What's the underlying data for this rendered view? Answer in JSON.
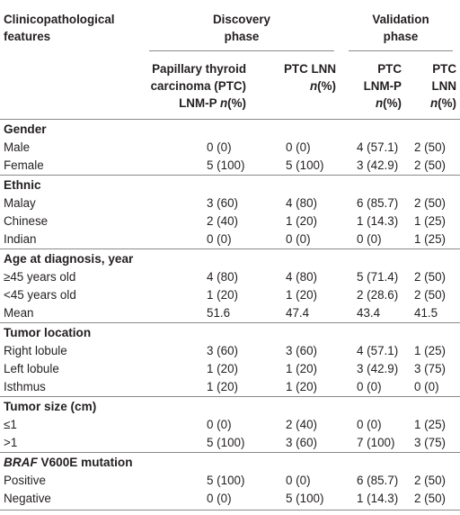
{
  "header": {
    "col0": [
      "Clinicopathological",
      "features"
    ],
    "discovery": [
      "Discovery",
      "phase"
    ],
    "validation": [
      "Validation",
      "phase"
    ],
    "sub1": [
      "Papillary thyroid",
      "carcinoma (PTC)",
      "LNM-P "
    ],
    "sub1_italic": "n",
    "sub1_tail": "(%)",
    "sub2": [
      "PTC LNN",
      ""
    ],
    "sub2_italic": "n",
    "sub2_tail": "(%)",
    "sub3": [
      "PTC",
      "LNM-P"
    ],
    "sub3_italic": "n",
    "sub3_tail": "(%)",
    "sub4": [
      "PTC",
      "LNN"
    ],
    "sub4_italic": "n",
    "sub4_tail": "(%)"
  },
  "sections": [
    {
      "title": "Gender",
      "rows": [
        {
          "label": "Male",
          "v": [
            "0 (0)",
            "0 (0)",
            "4 (57.1)",
            "2 (50)"
          ]
        },
        {
          "label": "Female",
          "v": [
            "5 (100)",
            "5 (100)",
            "3 (42.9)",
            "2 (50)"
          ]
        }
      ]
    },
    {
      "title": "Ethnic",
      "rows": [
        {
          "label": "Malay",
          "v": [
            "3 (60)",
            "4 (80)",
            "6 (85.7)",
            "2 (50)"
          ]
        },
        {
          "label": "Chinese",
          "v": [
            "2 (40)",
            "1 (20)",
            "1 (14.3)",
            "1 (25)"
          ]
        },
        {
          "label": "Indian",
          "v": [
            "0 (0)",
            "0 (0)",
            "0 (0)",
            "1 (25)"
          ]
        }
      ]
    },
    {
      "title": "Age at diagnosis, year",
      "rows": [
        {
          "label": "≥45 years old",
          "v": [
            "4 (80)",
            "4 (80)",
            "5 (71.4)",
            "2 (50)"
          ]
        },
        {
          "label": "<45 years old",
          "v": [
            "1 (20)",
            "1 (20)",
            "2 (28.6)",
            "2 (50)"
          ]
        },
        {
          "label": "Mean",
          "v": [
            "51.6",
            "47.4",
            "43.4",
            "41.5"
          ]
        }
      ]
    },
    {
      "title": "Tumor location",
      "rows": [
        {
          "label": "Right lobule",
          "v": [
            "3 (60)",
            "3 (60)",
            "4 (57.1)",
            "1 (25)"
          ]
        },
        {
          "label": "Left lobule",
          "v": [
            "1 (20)",
            "1 (20)",
            "3 (42.9)",
            "3 (75)"
          ]
        },
        {
          "label": "Isthmus",
          "v": [
            "1 (20)",
            "1 (20)",
            "0 (0)",
            "0 (0)"
          ]
        }
      ]
    },
    {
      "title": "Tumor size (cm)",
      "rows": [
        {
          "label": "≤1",
          "v": [
            "0 (0)",
            "2 (40)",
            "0 (0)",
            "1 (25)"
          ]
        },
        {
          "label": ">1",
          "v": [
            "5 (100)",
            "3 (60)",
            "7 (100)",
            "3 (75)"
          ]
        }
      ]
    },
    {
      "title": "BRAF V600E mutation",
      "title_italic": "BRAF",
      "title_rest": " V600E mutation",
      "rows": [
        {
          "label": "Positive",
          "v": [
            "5 (100)",
            "0 (0)",
            "6 (85.7)",
            "2 (50)"
          ]
        },
        {
          "label": "Negative",
          "v": [
            "0 (0)",
            "5 (100)",
            "1 (14.3)",
            "2 (50)"
          ]
        }
      ]
    }
  ]
}
